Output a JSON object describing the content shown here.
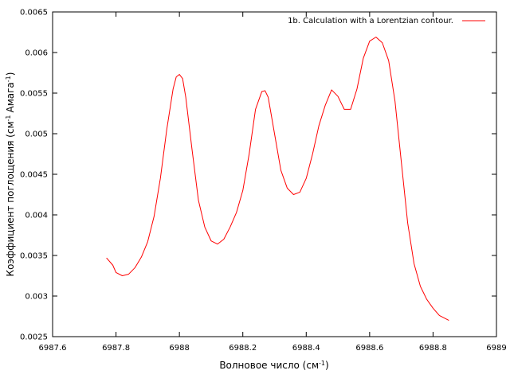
{
  "chart_data": {
    "type": "line",
    "xlabel": "Волновое число (см",
    "xlabel_sup": "-1",
    "xlabel_end": ")",
    "ylabel": "Коэффициент поглощения (см",
    "ylabel_sup1": "-1",
    "ylabel_mid": "Амага",
    "ylabel_sup2": "-1",
    "ylabel_end": ")",
    "xlim": [
      6987.6,
      6989.0
    ],
    "ylim": [
      0.0025,
      0.0065
    ],
    "xticks": [
      6987.6,
      6987.8,
      6988.0,
      6988.2,
      6988.4,
      6988.6,
      6988.8,
      6989.0
    ],
    "xtick_labels": [
      "6987.6",
      "6987.8",
      "6988",
      "6988.2",
      "6988.4",
      "6988.6",
      "6988.8",
      "6989"
    ],
    "yticks": [
      0.0025,
      0.003,
      0.0035,
      0.004,
      0.0045,
      0.005,
      0.0055,
      0.006,
      0.0065
    ],
    "ytick_labels": [
      "0.0025",
      "0.003",
      "0.0035",
      "0.004",
      "0.0045",
      "0.005",
      "0.0055",
      "0.006",
      "0.0065"
    ],
    "legend_position": "top-right",
    "series": [
      {
        "name": "1b. Calculation with a Lorentzian contour.",
        "color": "#ff0000",
        "x": [
          6987.77,
          6987.79,
          6987.8,
          6987.82,
          6987.84,
          6987.86,
          6987.88,
          6987.9,
          6987.92,
          6987.94,
          6987.96,
          6987.98,
          6987.99,
          6988.0,
          6988.01,
          6988.02,
          6988.04,
          6988.06,
          6988.08,
          6988.1,
          6988.12,
          6988.14,
          6988.16,
          6988.18,
          6988.2,
          6988.22,
          6988.24,
          6988.26,
          6988.27,
          6988.28,
          6988.3,
          6988.32,
          6988.34,
          6988.36,
          6988.38,
          6988.4,
          6988.42,
          6988.44,
          6988.46,
          6988.48,
          6988.5,
          6988.52,
          6988.54,
          6988.56,
          6988.58,
          6988.6,
          6988.62,
          6988.64,
          6988.66,
          6988.68,
          6988.7,
          6988.72,
          6988.74,
          6988.76,
          6988.78,
          6988.8,
          6988.82,
          6988.85
        ],
        "y": [
          0.00347,
          0.00338,
          0.00329,
          0.00325,
          0.00327,
          0.00335,
          0.00348,
          0.00367,
          0.00398,
          0.00445,
          0.00505,
          0.00555,
          0.0057,
          0.00573,
          0.00568,
          0.00545,
          0.0048,
          0.00418,
          0.00385,
          0.00368,
          0.00364,
          0.0037,
          0.00385,
          0.00403,
          0.0043,
          0.00475,
          0.0053,
          0.00552,
          0.00553,
          0.00545,
          0.005,
          0.00455,
          0.00433,
          0.00425,
          0.00428,
          0.00445,
          0.00475,
          0.0051,
          0.00535,
          0.00554,
          0.00546,
          0.0053,
          0.0053,
          0.00555,
          0.00593,
          0.00614,
          0.00619,
          0.00612,
          0.0059,
          0.0054,
          0.00465,
          0.0039,
          0.0034,
          0.00312,
          0.00296,
          0.00285,
          0.00276,
          0.0027
        ]
      }
    ]
  }
}
